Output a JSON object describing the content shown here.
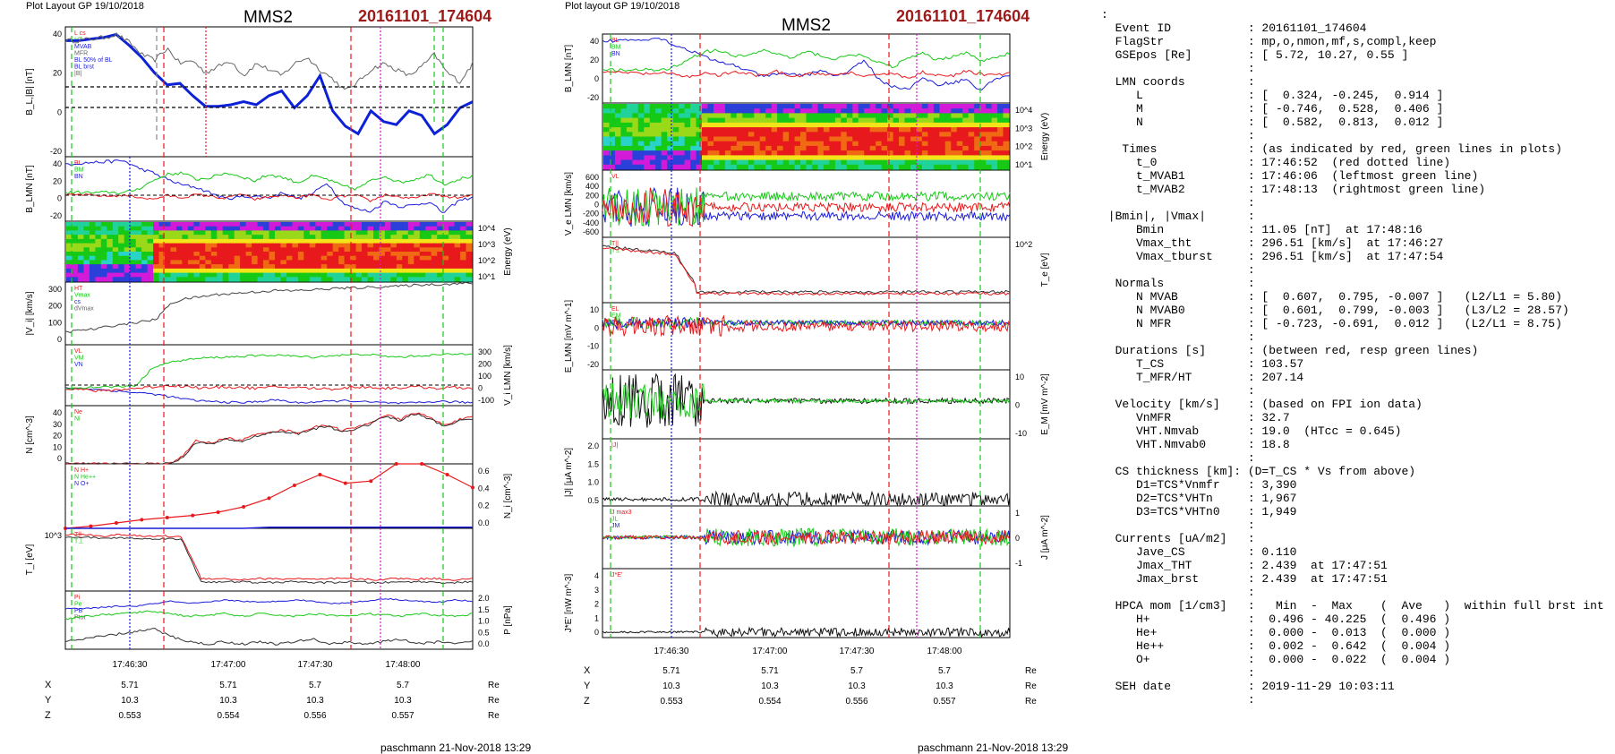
{
  "header": {
    "left_title": "Plot Layout GP 19/10/2018",
    "right_title": "Plot layout GP 19/10/2018",
    "spacecraft": "MMS2",
    "event": "20161101_174604",
    "footer": "paschmann 21-Nov-2018 13:29"
  },
  "colors": {
    "red": "#e8191c",
    "green": "#17c917",
    "blue": "#1c1cd9",
    "magenta": "#d21bd8",
    "gray": "#666666",
    "event_red": "#9c1a1a",
    "darkblue": "#0d22d6"
  },
  "time_axis": {
    "ticks": [
      "17:46:30",
      "17:47:00",
      "17:47:30",
      "17:48:00"
    ],
    "rows": [
      {
        "label": "X",
        "values": [
          "5.71",
          "5.71",
          "5.7",
          "5.7"
        ],
        "unit": "Re"
      },
      {
        "label": "Y",
        "values": [
          "10.3",
          "10.3",
          "10.3",
          "10.3"
        ],
        "unit": "Re"
      },
      {
        "label": "Z",
        "values": [
          "0.553",
          "0.554",
          "0.556",
          "0.557"
        ],
        "unit": "Re"
      }
    ]
  },
  "left_panels": [
    {
      "id": "bl",
      "ylabel": "B_L,|B| [nT]",
      "ticks": [
        "40",
        "20",
        "0",
        "-20"
      ],
      "legend": [
        "L cs",
        "HT",
        "MVAB",
        "MFR",
        "BL 50% of BL",
        "BL brst",
        "|B|"
      ]
    },
    {
      "id": "blmn",
      "ylabel": "B_LMN [nT]",
      "ticks": [
        "40",
        "20",
        "0",
        "-20"
      ],
      "legend": [
        "BL",
        "BM",
        "BN"
      ]
    },
    {
      "id": "spec",
      "ylabel": "Energy (eV)",
      "ticks": [
        "10^4",
        "10^3",
        "10^2",
        "10^1"
      ],
      "legend": []
    },
    {
      "id": "vi",
      "ylabel": "|V_i| [km/s]",
      "ticks": [
        "300",
        "200",
        "100",
        "0"
      ],
      "legend": [
        "HT",
        "Vmax",
        "cs",
        "dVmax"
      ]
    },
    {
      "id": "vilmn",
      "ylabel": "V_i LMN [km/s]",
      "ticks": [
        "300",
        "200",
        "100",
        "0",
        "-100"
      ],
      "legend": [
        "VL",
        "VM",
        "VN"
      ]
    },
    {
      "id": "n",
      "ylabel": "N [cm^-3]",
      "ticks": [
        "40",
        "30",
        "20",
        "10",
        "0"
      ],
      "legend": [
        "Ne",
        "Ni"
      ]
    },
    {
      "id": "ni",
      "ylabel": "N_i [cm^-3]",
      "ticks": [
        "0.6",
        "0.4",
        "0.2",
        "0.0"
      ],
      "legend": [
        "N H+",
        "N He++",
        "N O+"
      ]
    },
    {
      "id": "ti",
      "ylabel": "T_i [eV]",
      "ticks": [
        "10^3"
      ],
      "legend": [
        "T||",
        "T⊥"
      ]
    },
    {
      "id": "p",
      "ylabel": "P [nPa]",
      "ticks": [
        "2.0",
        "1.5",
        "1.0",
        "0.5",
        "0.0"
      ],
      "legend": [
        "Pi",
        "Pe",
        "PB",
        "Ptot"
      ]
    }
  ],
  "right_panels": [
    {
      "id": "rblmn",
      "ylabel": "B_LMN [nT]",
      "ticks": [
        "40",
        "20",
        "0",
        "-20"
      ],
      "legend": [
        "BL",
        "BM",
        "BN"
      ]
    },
    {
      "id": "rspec",
      "ylabel": "Energy (eV)",
      "ticks": [
        "10^4",
        "10^3",
        "10^2",
        "10^1"
      ],
      "legend": []
    },
    {
      "id": "velmn",
      "ylabel": "V_e LMN [km/s]",
      "ticks": [
        "600",
        "400",
        "200",
        "0",
        "-200",
        "-400",
        "-600"
      ],
      "legend": [
        "VL"
      ]
    },
    {
      "id": "te",
      "ylabel": "T_e [eV]",
      "ticks": [
        "10^2"
      ],
      "legend": [
        "T||",
        "T⊥"
      ]
    },
    {
      "id": "elmn",
      "ylabel": "E_LMN [mV m^-1]",
      "ticks": [
        "10",
        "0",
        "-10",
        "-20"
      ],
      "legend": [
        "EL",
        "EM",
        "EN"
      ]
    },
    {
      "id": "em",
      "ylabel": "E_M [mV m^-2]",
      "ticks": [
        "10",
        "0",
        "-10"
      ],
      "legend": []
    },
    {
      "id": "j",
      "ylabel": "|J| [μA m^-2]",
      "ticks": [
        "2.0",
        "1.5",
        "1.0",
        "0.5"
      ],
      "legend": [
        "|J|"
      ]
    },
    {
      "id": "jlmn",
      "ylabel": "J [μA m^-2]",
      "ticks": [
        "1",
        "0",
        "-1"
      ],
      "legend": [
        "J max3",
        "JL",
        "JM"
      ]
    },
    {
      "id": "je",
      "ylabel": "J*E' [nW m^-3]",
      "ticks": [
        "4",
        "3",
        "2",
        "1",
        "0"
      ],
      "legend": [
        "J*E'"
      ]
    }
  ],
  "chart_data": [
    {
      "type": "line",
      "title": "B_L,|B|",
      "ylabel": "B_L,|B| [nT]",
      "ylim": [
        -35,
        50
      ],
      "series": [
        {
          "name": "BL brst",
          "values": [
            41,
            41,
            42,
            43,
            45,
            38,
            30,
            20,
            12,
            13,
            5,
            -2,
            -2,
            -1,
            1,
            -1,
            5,
            8,
            -3,
            5,
            18,
            -5,
            -15,
            -20,
            -5,
            -12,
            -14,
            -5,
            -8,
            -20,
            -14,
            -3,
            1
          ]
        },
        {
          "name": "|B|",
          "values": [
            41,
            41,
            42,
            43,
            45,
            40,
            32,
            28,
            36,
            26,
            28,
            20,
            24,
            28,
            18,
            26,
            22,
            18,
            26,
            30,
            22,
            16,
            8,
            14,
            22,
            26,
            22,
            18,
            24,
            32,
            20,
            14,
            26
          ]
        }
      ]
    },
    {
      "type": "line",
      "title": "B_LMN",
      "ylabel": "B_LMN [nT]",
      "ylim": [
        -30,
        50
      ],
      "series": [
        {
          "name": "BL",
          "values": [
            41,
            42,
            43,
            44,
            45,
            36,
            30,
            22,
            15,
            12,
            5,
            -2,
            0,
            1,
            -1,
            6,
            -2,
            4,
            18,
            -6,
            -15,
            -18,
            -5,
            -12,
            -10,
            -6,
            -20,
            -5,
            0
          ]
        },
        {
          "name": "BM",
          "values": [
            5,
            6,
            5,
            6,
            5,
            10,
            20,
            28,
            30,
            22,
            24,
            30,
            26,
            20,
            28,
            24,
            18,
            26,
            22,
            14,
            10,
            20,
            26,
            18,
            22,
            28,
            16,
            22,
            26
          ]
        },
        {
          "name": "BN",
          "values": [
            2,
            3,
            2,
            1,
            2,
            0,
            -3,
            2,
            -1,
            3,
            1,
            -2,
            4,
            -3,
            0,
            2,
            -1,
            3,
            -4,
            1,
            2,
            -5,
            3,
            0,
            -2,
            4,
            1,
            -1,
            2
          ]
        }
      ]
    },
    {
      "type": "line",
      "title": "|V_i|",
      "ylabel": "|V_i| [km/s]",
      "ylim": [
        0,
        300
      ],
      "series": [
        {
          "name": "|V_i|",
          "values": [
            60,
            70,
            75,
            90,
            100,
            110,
            120,
            200,
            220,
            230,
            240,
            245,
            250,
            255,
            260,
            258,
            262,
            265,
            270,
            272,
            275,
            278,
            280,
            285,
            288,
            290,
            292,
            295
          ]
        }
      ]
    },
    {
      "type": "line",
      "title": "V_i LMN",
      "ylabel": "V_i LMN [km/s]",
      "ylim": [
        -120,
        300
      ],
      "series": [
        {
          "name": "VL",
          "values": [
            0,
            0,
            -10,
            -20,
            -30,
            -40,
            -60,
            -80,
            -90,
            -95,
            -100,
            -90,
            -80,
            -100,
            -95,
            -90,
            -85,
            -95,
            -100,
            -105,
            -100,
            -90,
            -95,
            -100
          ]
        },
        {
          "name": "VM",
          "values": [
            0,
            5,
            10,
            10,
            20,
            150,
            180,
            200,
            210,
            215,
            220,
            225,
            230,
            220,
            215,
            225,
            230,
            235,
            220,
            215,
            225,
            230,
            235,
            240
          ]
        },
        {
          "name": "VN",
          "values": [
            0,
            -10,
            -20,
            -10,
            0,
            10,
            20,
            10,
            0,
            10,
            5,
            0,
            10,
            5,
            0,
            -5,
            5,
            10,
            0,
            5,
            10,
            0,
            5,
            0
          ]
        }
      ]
    },
    {
      "type": "line",
      "title": "N",
      "ylabel": "N [cm^-3]",
      "ylim": [
        0,
        45
      ],
      "series": [
        {
          "name": "Ne",
          "values": [
            0,
            0,
            0,
            0,
            0,
            0,
            0,
            0,
            5,
            18,
            16,
            20,
            18,
            22,
            25,
            26,
            24,
            28,
            30,
            26,
            28,
            32,
            38,
            34,
            40,
            36,
            30,
            34,
            36
          ]
        },
        {
          "name": "Ni",
          "values": [
            0,
            0,
            0,
            0,
            0,
            0,
            0,
            0,
            4,
            17,
            15,
            19,
            17,
            21,
            24,
            25,
            23,
            27,
            29,
            25,
            27,
            31,
            37,
            33,
            39,
            35,
            29,
            33,
            35
          ]
        }
      ]
    },
    {
      "type": "line",
      "title": "N_i",
      "ylabel": "N_i [cm^-3]",
      "ylim": [
        0,
        0.6
      ],
      "series": [
        {
          "name": "N He++",
          "values": [
            0.0,
            0.02,
            0.05,
            0.08,
            0.1,
            0.12,
            0.15,
            0.2,
            0.28,
            0.4,
            0.5,
            0.42,
            0.44,
            0.6,
            0.6,
            0.5,
            0.38
          ]
        },
        {
          "name": "N O+",
          "values": [
            0,
            0,
            0,
            0,
            0,
            0,
            0,
            0,
            0.01,
            0.01,
            0.01,
            0.01,
            0.01,
            0.01,
            0.01,
            0.01,
            0.01
          ]
        }
      ]
    },
    {
      "type": "line",
      "title": "T_i",
      "ylabel": "T_i [eV]",
      "ylim": [
        0,
        1
      ],
      "series": [
        {
          "name": "T||",
          "values": [
            0.9,
            0.9,
            0.88,
            0.9,
            0.87,
            0.88,
            0.86,
            0.2,
            0.2,
            0.18,
            0.2,
            0.19,
            0.2,
            0.18,
            0.2,
            0.19,
            0.18,
            0.2,
            0.19,
            0.2,
            0.18,
            0.2
          ]
        },
        {
          "name": "T⊥",
          "values": [
            0.85,
            0.86,
            0.84,
            0.85,
            0.83,
            0.84,
            0.82,
            0.15,
            0.14,
            0.15,
            0.13,
            0.14,
            0.15,
            0.13,
            0.14,
            0.15,
            0.13,
            0.14,
            0.15,
            0.14,
            0.13,
            0.15
          ]
        }
      ]
    },
    {
      "type": "line",
      "title": "P",
      "ylabel": "P [nPa]",
      "ylim": [
        0,
        2.3
      ],
      "series": [
        {
          "name": "PB",
          "values": [
            1.6,
            1.6,
            1.65,
            1.7,
            1.7,
            1.8,
            1.9,
            1.8,
            1.85,
            1.95,
            1.9,
            1.85,
            1.9,
            1.95,
            1.9,
            1.8,
            1.85,
            1.9,
            2.0,
            1.95,
            1.9,
            1.85,
            1.95,
            1.9
          ]
        },
        {
          "name": "Pi",
          "values": [
            1.2,
            1.3,
            1.35,
            1.4,
            1.45,
            1.5,
            1.4,
            1.3,
            1.35,
            1.4,
            1.3,
            1.4,
            1.35,
            1.3,
            1.4,
            1.35,
            1.3,
            1.4,
            1.35,
            1.3,
            1.4,
            1.35,
            1.3,
            1.4
          ]
        },
        {
          "name": "Ptot",
          "values": [
            0.3,
            0.4,
            0.5,
            0.6,
            0.7,
            0.8,
            0.5,
            0.3,
            0.2,
            0.3,
            0.2,
            0.3,
            0.2,
            0.3,
            0.4,
            0.2,
            0.3,
            0.2,
            0.3,
            0.4,
            0.2,
            0.3,
            0.2,
            0.3
          ]
        }
      ]
    }
  ],
  "info": {
    "lines": [
      ":",
      "  Event ID           : 20161101_174604",
      "  FlagStr            : mp,o,nmon,mf,s,compl,keep",
      "  GSEpos [Re]        : [ 5.72, 10.27, 0.55 ]",
      "                     :",
      "  LMN coords         :",
      "     L               : [  0.324, -0.245,  0.914 ]",
      "     M               : [ -0.746,  0.528,  0.406 ]",
      "     N               : [  0.582,  0.813,  0.012 ]",
      "                     :",
      "   Times             : (as indicated by red, green lines in plots)",
      "     t_0             : 17:46:52  (red dotted line)",
      "     t_MVAB1         : 17:46:06  (leftmost green line)",
      "     t_MVAB2         : 17:48:13  (rightmost green line)",
      "                     :",
      " |Bmin|, |Vmax|      :",
      "     Bmin            : 11.05 [nT]  at 17:48:16",
      "     Vmax_tht        : 296.51 [km/s]  at 17:46:27",
      "     Vmax_tburst     : 296.51 [km/s]  at 17:47:54",
      "                     :",
      "  Normals            :",
      "     N MVAB          : [  0.607,  0.795, -0.007 ]   (L2/L1 = 5.80)",
      "     N MVAB0         : [  0.601,  0.799, -0.003 ]   (L3/L2 = 28.57)",
      "     N MFR           : [ -0.723, -0.691,  0.012 ]   (L2/L1 = 8.75)",
      "                     :",
      "  Durations [s]      : (between red, resp green lines)",
      "     T_CS            : 103.57",
      "     T_MFR/HT        : 207.14",
      "                     :",
      "  Velocity [km/s]    : (based on FPI ion data)",
      "     VnMFR           : 32.7",
      "     VHT.Nmvab       : 19.0  (HTcc = 0.645)",
      "     VHT.Nmvab0      : 18.8",
      "                     :",
      "  CS thickness [km]: (D=T_CS * Vs from above)",
      "     D1=TCS*Vnmfr    : 3,390",
      "     D2=TCS*VHTn     : 1,967",
      "     D3=TCS*VHTn0    : 1,949",
      "                     :",
      "  Currents [uA/m2]   :",
      "     Jave_CS         : 0.110",
      "     Jmax_THT        : 2.439  at 17:47:51",
      "     Jmax_brst       : 2.439  at 17:47:51",
      "                     :",
      "  HPCA mom [1/cm3]   :   Min  -  Max    (  Ave   )  within full brst int",
      "     H+              :  0.496 - 40.225  (  0.496 )",
      "     He+             :  0.000 -  0.013  (  0.000 )",
      "     He++            :  0.002 -  0.642  (  0.004 )",
      "     O+              :  0.000 -  0.022  (  0.004 )",
      "                     :",
      "  SEH date           : 2019-11-29 10:03:11",
      "                     :"
    ]
  }
}
